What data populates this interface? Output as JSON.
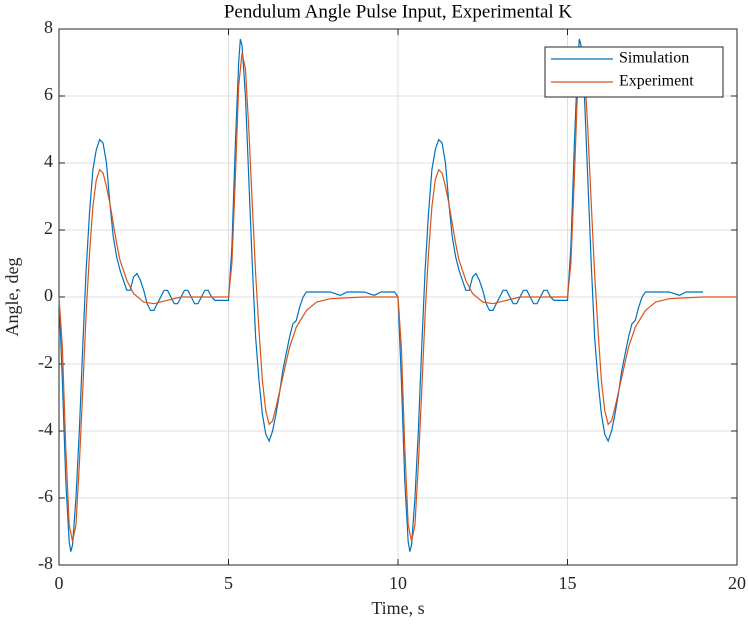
{
  "chart_data": {
    "type": "line",
    "title": "Pendulum Angle Pulse Input, Experimental K",
    "x_label": "Time, s",
    "y_label": "Angle, deg",
    "xlim": [
      0,
      20
    ],
    "xticks": [
      0,
      5,
      10,
      15,
      20
    ],
    "ylim": [
      -8,
      8
    ],
    "yticks": [
      -8,
      -6,
      -4,
      -2,
      0,
      2,
      4,
      6,
      8
    ],
    "grid": true,
    "legend": "northeast",
    "series": [
      {
        "name": "Simulation",
        "color": "#0072bd",
        "x": [
          0,
          0.1,
          0.2,
          0.3,
          0.35,
          0.4,
          0.5,
          0.6,
          0.7,
          0.8,
          0.9,
          1.0,
          1.1,
          1.2,
          1.3,
          1.4,
          1.5,
          1.6,
          1.7,
          1.8,
          1.9,
          2.0,
          2.1,
          2.2,
          2.3,
          2.4,
          2.5,
          2.6,
          2.7,
          2.8,
          2.9,
          3.0,
          3.1,
          3.2,
          3.3,
          3.4,
          3.5,
          3.6,
          3.7,
          3.8,
          3.9,
          4.0,
          4.1,
          4.2,
          4.3,
          4.4,
          4.5,
          4.6,
          5.0,
          5.1,
          5.2,
          5.3,
          5.35,
          5.4,
          5.5,
          5.6,
          5.7,
          5.8,
          5.9,
          6.0,
          6.1,
          6.2,
          6.3,
          6.4,
          6.5,
          6.6,
          6.7,
          6.8,
          6.9,
          7.0,
          7.1,
          7.2,
          7.3,
          8.0,
          8.3,
          8.5,
          9.0,
          9.3,
          9.5,
          9.9,
          10,
          10.1,
          10.2,
          10.3,
          10.35,
          10.4,
          10.5,
          10.6,
          10.7,
          10.8,
          10.9,
          11.0,
          11.1,
          11.2,
          11.3,
          11.4,
          11.5,
          11.6,
          11.7,
          11.8,
          11.9,
          12.0,
          12.1,
          12.2,
          12.3,
          12.4,
          12.5,
          12.6,
          12.7,
          12.8,
          12.9,
          13.0,
          13.1,
          13.2,
          13.3,
          13.4,
          13.5,
          13.6,
          13.7,
          13.8,
          13.9,
          14.0,
          14.1,
          14.2,
          14.3,
          14.4,
          14.5,
          14.6,
          15.0,
          15.1,
          15.2,
          15.3,
          15.35,
          15.4,
          15.5,
          15.6,
          15.7,
          15.8,
          15.9,
          16.0,
          16.1,
          16.2,
          16.3,
          16.4,
          16.5,
          16.6,
          16.7,
          16.8,
          16.9,
          17.0,
          17.1,
          17.2,
          17.3,
          18.0,
          18.3,
          18.5,
          19.0
        ],
        "values": [
          0,
          -2.5,
          -5.5,
          -7.3,
          -7.6,
          -7.4,
          -6,
          -4,
          -1.5,
          0.8,
          2.5,
          3.8,
          4.4,
          4.7,
          4.6,
          4.0,
          2.8,
          1.8,
          1.2,
          0.8,
          0.5,
          0.2,
          0.2,
          0.6,
          0.7,
          0.5,
          0.2,
          -0.2,
          -0.4,
          -0.4,
          -0.2,
          0,
          0.2,
          0.2,
          0,
          -0.2,
          -0.2,
          0,
          0.2,
          0.2,
          0,
          -0.2,
          -0.2,
          0,
          0.2,
          0.2,
          0,
          -0.1,
          -0.1,
          1.5,
          4.5,
          7.0,
          7.7,
          7.5,
          6.0,
          3.5,
          1.0,
          -1.2,
          -2.5,
          -3.5,
          -4.1,
          -4.3,
          -4.0,
          -3.5,
          -2.9,
          -2.2,
          -1.7,
          -1.2,
          -0.8,
          -0.7,
          -0.3,
          0,
          0.15,
          0.15,
          0.05,
          0.15,
          0.15,
          0.05,
          0.15,
          0.15,
          0,
          -2.5,
          -5.5,
          -7.3,
          -7.6,
          -7.4,
          -6,
          -4,
          -1.5,
          0.8,
          2.5,
          3.8,
          4.4,
          4.7,
          4.6,
          4.0,
          2.8,
          1.8,
          1.2,
          0.8,
          0.5,
          0.2,
          0.2,
          0.6,
          0.7,
          0.5,
          0.2,
          -0.2,
          -0.4,
          -0.4,
          -0.2,
          0,
          0.2,
          0.2,
          0,
          -0.2,
          -0.2,
          0,
          0.2,
          0.2,
          0,
          -0.2,
          -0.2,
          0,
          0.2,
          0.2,
          0,
          -0.1,
          -0.1,
          1.5,
          4.5,
          7.0,
          7.7,
          7.5,
          6.0,
          3.5,
          1.0,
          -1.2,
          -2.5,
          -3.5,
          -4.1,
          -4.3,
          -4.0,
          -3.5,
          -2.9,
          -2.2,
          -1.7,
          -1.2,
          -0.8,
          -0.7,
          -0.3,
          0,
          0.15,
          0.15,
          0.05,
          0.15,
          0.15
        ]
      },
      {
        "name": "Experiment",
        "color": "#d95319",
        "x": [
          0,
          0.1,
          0.2,
          0.3,
          0.4,
          0.5,
          0.6,
          0.7,
          0.8,
          0.9,
          1.0,
          1.1,
          1.2,
          1.3,
          1.4,
          1.5,
          1.6,
          1.7,
          1.8,
          2.0,
          2.2,
          2.5,
          2.8,
          3.2,
          3.6,
          4.0,
          5.0,
          5.1,
          5.2,
          5.3,
          5.4,
          5.5,
          5.6,
          5.7,
          5.8,
          5.9,
          6.0,
          6.1,
          6.2,
          6.3,
          6.4,
          6.6,
          6.8,
          7.0,
          7.3,
          7.6,
          8.0,
          9.0,
          9.9,
          10,
          10.1,
          10.2,
          10.3,
          10.4,
          10.5,
          10.6,
          10.7,
          10.8,
          10.9,
          11.0,
          11.1,
          11.2,
          11.3,
          11.4,
          11.5,
          11.6,
          11.7,
          11.8,
          12.0,
          12.2,
          12.5,
          12.8,
          13.2,
          13.6,
          14.0,
          15.0,
          15.1,
          15.2,
          15.3,
          15.4,
          15.5,
          15.6,
          15.7,
          15.8,
          15.9,
          16.0,
          16.1,
          16.2,
          16.3,
          16.4,
          16.6,
          16.8,
          17.0,
          17.3,
          17.6,
          18.0,
          19.0,
          20.0
        ],
        "values": [
          0,
          -1.5,
          -4.5,
          -6.8,
          -7.3,
          -6.8,
          -5,
          -2.8,
          -0.5,
          1.3,
          2.7,
          3.5,
          3.8,
          3.7,
          3.3,
          2.8,
          2.2,
          1.6,
          1.1,
          0.5,
          0.1,
          -0.15,
          -0.2,
          -0.1,
          0,
          0,
          0,
          1.0,
          3.5,
          6.3,
          7.3,
          6.8,
          5,
          2.8,
          0.7,
          -1.0,
          -2.5,
          -3.4,
          -3.8,
          -3.7,
          -3.3,
          -2.4,
          -1.5,
          -0.9,
          -0.4,
          -0.15,
          -0.05,
          0,
          0,
          0,
          -1.5,
          -4.5,
          -6.8,
          -7.3,
          -6.8,
          -5,
          -2.8,
          -0.5,
          1.3,
          2.7,
          3.5,
          3.8,
          3.7,
          3.3,
          2.8,
          2.2,
          1.6,
          1.1,
          0.5,
          0.1,
          -0.15,
          -0.2,
          -0.1,
          0,
          0,
          0,
          1.0,
          3.5,
          6.3,
          7.3,
          6.8,
          5,
          2.8,
          0.7,
          -1.0,
          -2.5,
          -3.4,
          -3.8,
          -3.7,
          -3.3,
          -2.4,
          -1.5,
          -0.9,
          -0.4,
          -0.15,
          -0.05,
          0,
          0
        ]
      }
    ]
  }
}
